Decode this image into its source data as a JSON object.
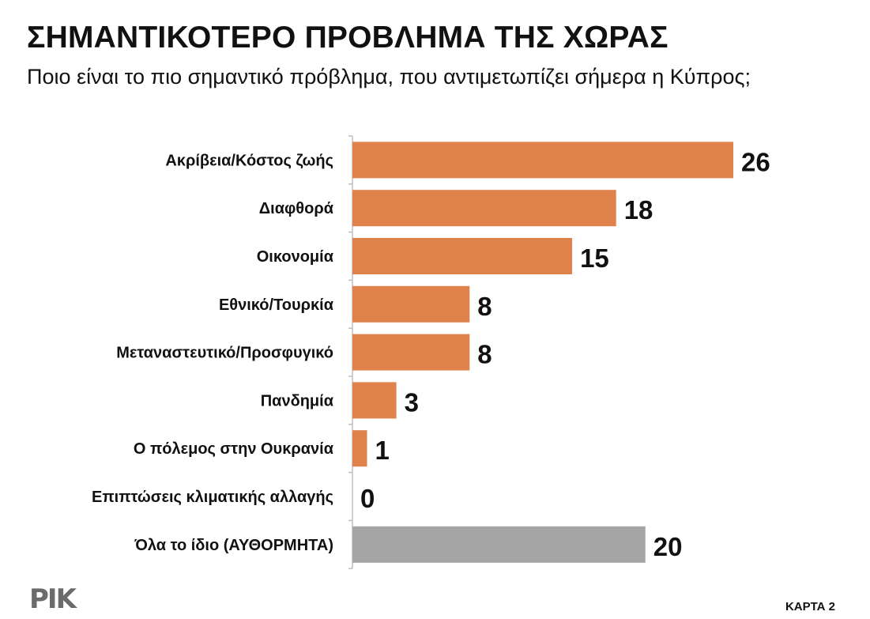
{
  "header": {
    "title": "ΣΗΜΑΝΤΙΚΟΤΕΡΟ ΠΡΟΒΛΗΜΑ ΤΗΣ ΧΩΡΑΣ",
    "subtitle": "Ποιο είναι το πιο σημαντικό πρόβλημα, που αντιμετωπίζει σήμερα η Κύπρος;"
  },
  "footer": {
    "logo_text": "ΡΙΚ",
    "page_label": "ΚΑΡΤΑ 2"
  },
  "colors": {
    "bar_primary": "#E0824C",
    "bar_secondary": "#A5A5A5",
    "axis": "#BFBFBF",
    "text": "#111111"
  },
  "chart_data": {
    "type": "bar",
    "orientation": "horizontal",
    "title": "ΣΗΜΑΝΤΙΚΟΤΕΡΟ ΠΡΟΒΛΗΜΑ ΤΗΣ ΧΩΡΑΣ",
    "subtitle": "Ποιο είναι το πιο σημαντικό πρόβλημα, που αντιμετωπίζει σήμερα η Κύπρος;",
    "xlabel": "",
    "ylabel": "",
    "xlim": [
      0,
      26
    ],
    "grid": false,
    "legend": "none",
    "categories": [
      "Ακρίβεια/Κόστος ζωής",
      "Διαφθορά",
      "Οικονομία",
      "Εθνικό/Τουρκία",
      "Μεταναστευτικό/Προσφυγικό",
      "Πανδημία",
      "Ο πόλεμος στην Ουκρανία",
      "Επιπτώσεις κλιματικής αλλαγής",
      "Όλα το ίδιο (ΑΥΘΟΡΜΗΤΑ)"
    ],
    "values": [
      26,
      18,
      15,
      8,
      8,
      3,
      1,
      0,
      20
    ],
    "bar_colors": [
      "#E0824C",
      "#E0824C",
      "#E0824C",
      "#E0824C",
      "#E0824C",
      "#E0824C",
      "#E0824C",
      "#E0824C",
      "#A5A5A5"
    ]
  }
}
